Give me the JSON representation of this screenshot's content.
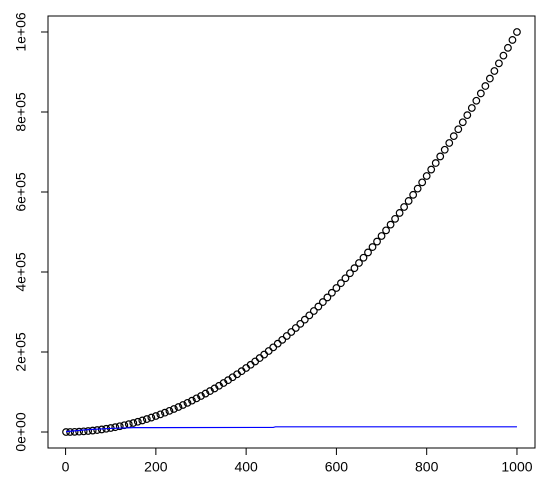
{
  "chart_data": {
    "type": "scatter",
    "xlim": [
      -38.96,
      1039.96
    ],
    "ylim": [
      -39960,
      1039960
    ],
    "xticks": [
      0,
      200,
      400,
      600,
      800,
      1000
    ],
    "yticks": [
      {
        "value": 0,
        "label": "0e+00"
      },
      {
        "value": 200000,
        "label": "2e+05"
      },
      {
        "value": 400000,
        "label": "4e+05"
      },
      {
        "value": 600000,
        "label": "6e+05"
      },
      {
        "value": 800000,
        "label": "8e+05"
      },
      {
        "value": 1000000,
        "label": "1e+06"
      }
    ],
    "series": [
      {
        "type": "scatter",
        "color": "#000000",
        "x": [
          1,
          10,
          20,
          30,
          40,
          50,
          60,
          70,
          80,
          90,
          100,
          110,
          120,
          130,
          140,
          150,
          160,
          170,
          180,
          190,
          200,
          210,
          220,
          230,
          240,
          250,
          260,
          270,
          280,
          290,
          300,
          310,
          320,
          330,
          340,
          350,
          360,
          370,
          380,
          390,
          400,
          410,
          420,
          430,
          440,
          450,
          460,
          470,
          480,
          490,
          500,
          510,
          520,
          530,
          540,
          550,
          560,
          570,
          580,
          590,
          600,
          610,
          620,
          630,
          640,
          650,
          660,
          670,
          680,
          690,
          700,
          710,
          720,
          730,
          740,
          750,
          760,
          770,
          780,
          790,
          800,
          810,
          820,
          830,
          840,
          850,
          860,
          870,
          880,
          890,
          900,
          910,
          920,
          930,
          940,
          950,
          960,
          970,
          980,
          990,
          1000
        ],
        "values": [
          1,
          100,
          400,
          900,
          1600,
          2500,
          3600,
          4900,
          6400,
          8100,
          10000,
          12100,
          14400,
          16900,
          19600,
          22500,
          25600,
          28900,
          32400,
          36100,
          40000,
          44100,
          48400,
          52900,
          57600,
          62500,
          67600,
          72900,
          78400,
          84100,
          90000,
          96100,
          102400,
          108900,
          115600,
          122500,
          129600,
          136900,
          144400,
          152100,
          160000,
          168100,
          176400,
          184900,
          193600,
          202500,
          211600,
          220900,
          230400,
          240100,
          250000,
          260100,
          270400,
          280900,
          291600,
          302500,
          313600,
          324900,
          336400,
          348100,
          360000,
          372100,
          384400,
          396900,
          409600,
          422500,
          435600,
          448900,
          462400,
          476100,
          490000,
          504100,
          518400,
          532900,
          547600,
          562500,
          577600,
          592900,
          608400,
          624100,
          640000,
          656100,
          672400,
          688900,
          705600,
          722500,
          739600,
          756900,
          774400,
          792100,
          810000,
          828100,
          846400,
          864900,
          883600,
          902500,
          921600,
          940900,
          960400,
          980100,
          1000000
        ]
      },
      {
        "type": "line",
        "color": "#0000ff",
        "x": [
          1,
          50,
          100,
          150,
          200,
          460,
          465,
          1000
        ],
        "values": [
          1000,
          6000,
          9000,
          11000,
          11000,
          11500,
          13000,
          13000
        ]
      }
    ]
  }
}
